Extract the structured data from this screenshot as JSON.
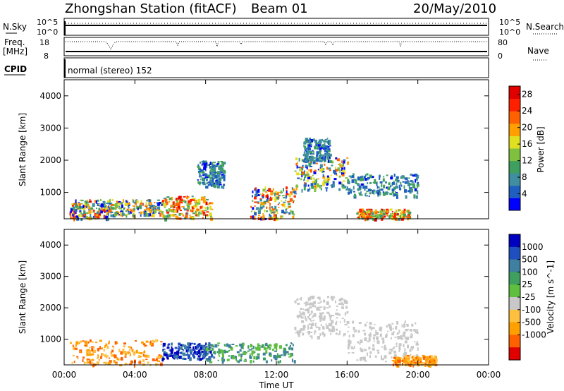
{
  "header": {
    "station": "Zhongshan Station (fitACF)",
    "beam": "Beam 01",
    "date": "20/May/2010"
  },
  "aux": {
    "nsky_label": "N.Sky",
    "nsky_ticks": [
      "10^5",
      "10^0"
    ],
    "nsearch_label": "N.Search",
    "freq_label_1": "Freq.",
    "freq_label_2": "[MHz]",
    "freq_ticks": [
      "18",
      "8"
    ],
    "nave_label": "Nave",
    "nave_ticks": [
      "80",
      "0"
    ],
    "cpid_label": "CPID",
    "cpid_text": "normal (stereo) 152"
  },
  "colors": {
    "power_scale": [
      "#0000ff",
      "#1f5fc0",
      "#3f8fa0",
      "#3f9f5f",
      "#7fc03f",
      "#e0e020",
      "#ff9f00",
      "#ff6000",
      "#ff2000",
      "#e00000"
    ],
    "velocity_scale": [
      "#0000c0",
      "#1f4fbf",
      "#3f7f9f",
      "#3f9f5f",
      "#5fbf3f",
      "#c8c8c8",
      "#ffbf3f",
      "#ff9f00",
      "#ff6000",
      "#e00000"
    ],
    "ground_scatter": "#c8c8c8"
  },
  "chart_data": [
    {
      "type": "heatmap",
      "name": "power-panel",
      "ylabel": "Slant Range [km]",
      "xlabel": "",
      "xlim": [
        "00:00",
        "00:00"
      ],
      "ylim": [
        180,
        4500
      ],
      "x_ticks": [
        "00:00",
        "04:00",
        "08:00",
        "12:00",
        "16:00",
        "20:00",
        "00:00"
      ],
      "y_ticks": [
        1000,
        2000,
        3000,
        4000
      ],
      "colorbar": {
        "label": "Power [dB]",
        "ticks": [
          "4",
          "8",
          "12",
          "16",
          "20",
          "24",
          "28"
        ],
        "range": [
          0,
          30
        ]
      },
      "regions": [
        {
          "t": [
            0.3,
            2.5
          ],
          "r": [
            200,
            800
          ],
          "level": "mixed",
          "peak": 28
        },
        {
          "t": [
            2.5,
            5.5
          ],
          "r": [
            300,
            800
          ],
          "level": "mixed",
          "peak": 24
        },
        {
          "t": [
            5.5,
            8.3
          ],
          "r": [
            200,
            900
          ],
          "level": "high",
          "peak": 28
        },
        {
          "t": [
            7.5,
            9.0
          ],
          "r": [
            1200,
            2000
          ],
          "level": "low",
          "peak": 8
        },
        {
          "t": [
            10.5,
            13.0
          ],
          "r": [
            200,
            1200
          ],
          "level": "mixed",
          "peak": 28
        },
        {
          "t": [
            13.0,
            16.0
          ],
          "r": [
            1100,
            2100
          ],
          "level": "mixed",
          "peak": 24
        },
        {
          "t": [
            13.5,
            15.0
          ],
          "r": [
            2000,
            2700
          ],
          "level": "low",
          "peak": 8
        },
        {
          "t": [
            16.0,
            20.0
          ],
          "r": [
            900,
            1600
          ],
          "level": "low",
          "peak": 12
        },
        {
          "t": [
            16.5,
            19.5
          ],
          "r": [
            200,
            500
          ],
          "level": "high",
          "peak": 28
        }
      ]
    },
    {
      "type": "heatmap",
      "name": "velocity-panel",
      "ylabel": "Slant Range [km]",
      "xlabel": "Time UT",
      "xlim": [
        "00:00",
        "00:00"
      ],
      "ylim": [
        180,
        4500
      ],
      "x_ticks": [
        "00:00",
        "04:00",
        "08:00",
        "12:00",
        "16:00",
        "20:00",
        "00:00"
      ],
      "y_ticks": [
        1000,
        2000,
        3000,
        4000
      ],
      "colorbar": {
        "label": "Velocity [m s^-1]",
        "ticks": [
          "1000",
          "500",
          "100",
          "25",
          "-25",
          "-100",
          "-500",
          "-1000"
        ]
      },
      "regions": [
        {
          "t": [
            0.3,
            5.5
          ],
          "r": [
            200,
            1000
          ],
          "level": "negative",
          "value": -300
        },
        {
          "t": [
            5.5,
            8.3
          ],
          "r": [
            400,
            900
          ],
          "level": "positive",
          "value": 600
        },
        {
          "t": [
            8.0,
            13.0
          ],
          "r": [
            300,
            900
          ],
          "level": "low",
          "value": 150
        },
        {
          "t": [
            13.0,
            16.0
          ],
          "r": [
            1100,
            2400
          ],
          "level": "ground",
          "value": 0
        },
        {
          "t": [
            16.0,
            20.0
          ],
          "r": [
            300,
            1600
          ],
          "level": "ground",
          "value": 0
        },
        {
          "t": [
            18.5,
            21.0
          ],
          "r": [
            200,
            500
          ],
          "level": "negative",
          "value": -200
        }
      ]
    }
  ]
}
